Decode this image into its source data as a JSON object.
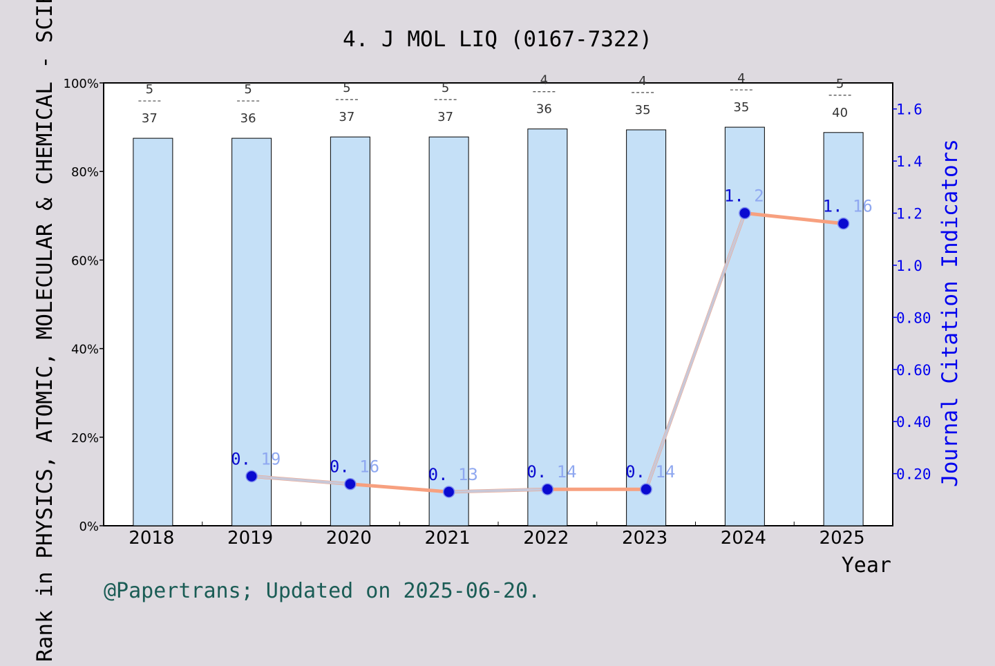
{
  "chart_data": {
    "type": "bar",
    "title": "4. J MOL LIQ (0167-7322)",
    "xlabel": "Year",
    "ylabel_left": "Rank in PHYSICS, ATOMIC, MOLECULAR & CHEMICAL - SCIE",
    "ylabel_right": "Journal Citation Indicators",
    "footer": "@Papertrans; Updated on 2025-06-20.",
    "categories": [
      "2018",
      "2019",
      "2020",
      "2021",
      "2022",
      "2023",
      "2024",
      "2025"
    ],
    "left_axis": {
      "ylim": [
        0,
        100
      ],
      "ticks": [
        0,
        20,
        40,
        60,
        80,
        100
      ],
      "tick_labels": [
        "0%",
        "20%",
        "40%",
        "60%",
        "80%",
        "100%"
      ]
    },
    "right_axis": {
      "ylim": [
        0,
        1.7
      ],
      "ticks": [
        0.2,
        0.4,
        0.6,
        0.8,
        1.0,
        1.2,
        1.4,
        1.6
      ],
      "tick_labels": [
        "0.20",
        "0.40",
        "0.60",
        "0.80",
        "1.0",
        "1.2",
        "1.4",
        "1.6"
      ]
    },
    "series": [
      {
        "type": "bar",
        "axis": "left",
        "values": [
          87.5,
          87.5,
          87.8,
          87.8,
          89.6,
          89.4,
          90.0,
          88.8
        ],
        "rank_labels": [
          {
            "rank": "5",
            "total": "37"
          },
          {
            "rank": "5",
            "total": "36"
          },
          {
            "rank": "5",
            "total": "37"
          },
          {
            "rank": "5",
            "total": "37"
          },
          {
            "rank": "4",
            "total": "36"
          },
          {
            "rank": "4",
            "total": "35"
          },
          {
            "rank": "4",
            "total": "35"
          },
          {
            "rank": "5",
            "total": "40"
          }
        ],
        "color": "#c5e0f7"
      },
      {
        "type": "line",
        "axis": "right",
        "x": [
          "2019",
          "2020",
          "2021",
          "2022",
          "2023",
          "2024",
          "2025"
        ],
        "values": [
          0.19,
          0.16,
          0.13,
          0.14,
          0.14,
          1.2,
          1.16
        ],
        "value_labels": [
          "0.19",
          "0.16",
          "0.13",
          "0.14",
          "0.14",
          "1.2",
          "1.16"
        ],
        "color": "#f7a07f",
        "marker_color": "#0a0ad0"
      }
    ],
    "colors": {
      "background": "#dedae0",
      "plot_background": "#ffffff",
      "right_axis": "#0000ee",
      "footer": "#1a5c55",
      "line_overlay": "#c8c8d8",
      "label_light": "#8fa8f0"
    },
    "legend": "none",
    "grid": false
  }
}
